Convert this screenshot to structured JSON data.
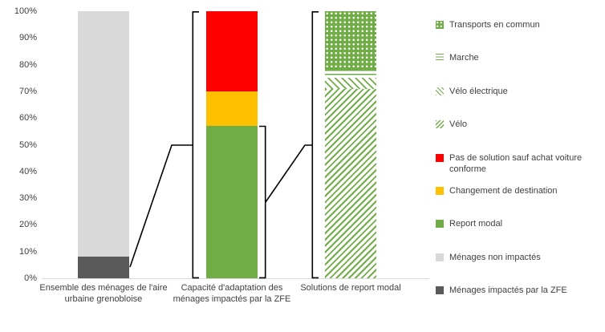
{
  "chart_data": {
    "type": "bar",
    "variant": "stacked-100-waterfall",
    "title": "",
    "xlabel": "",
    "ylabel": "",
    "ylim": [
      0,
      100
    ],
    "grid": false,
    "legend_position": "right",
    "ytick_labels": [
      "0%",
      "10%",
      "20%",
      "30%",
      "40%",
      "50%",
      "60%",
      "70%",
      "80%",
      "90%",
      "100%"
    ],
    "categories": [
      "Ensemble des ménages de l'aire urbaine grenobloise",
      "Capacité d'adaptation des ménages impactés par la ZFE",
      "Solutions de report modal"
    ],
    "bars": [
      {
        "category": "Ensemble des ménages de l'aire urbaine grenobloise",
        "segments": [
          {
            "label": "Ménages impactés  par la ZFE",
            "value": 8,
            "color": "#595959",
            "pattern": "solid"
          },
          {
            "label": "Ménages non impactés",
            "value": 92,
            "color": "#D9D9D9",
            "pattern": "solid"
          }
        ]
      },
      {
        "category": "Capacité d'adaptation des ménages impactés par la ZFE",
        "segments": [
          {
            "label": "Report modal",
            "value": 57,
            "color": "#70AD47",
            "pattern": "solid"
          },
          {
            "label": "Changement de destination",
            "value": 13,
            "color": "#FFC000",
            "pattern": "solid"
          },
          {
            "label": "Pas de solution sauf achat voiture conforme",
            "value": 30,
            "color": "#FF0000",
            "pattern": "solid"
          }
        ]
      },
      {
        "category": "Solutions de report modal",
        "segments": [
          {
            "label": "Vélo",
            "value": 71,
            "color": "#70AD47",
            "pattern": "diagonal-dense"
          },
          {
            "label": "Vélo électrique",
            "value": 4,
            "color": "#70AD47",
            "pattern": "diagonal"
          },
          {
            "label": "Marche",
            "value": 3,
            "color": "#70AD47",
            "pattern": "horizontal"
          },
          {
            "label": "Transports en commun",
            "value": 22,
            "color": "#70AD47",
            "pattern": "dots"
          }
        ]
      }
    ],
    "legend": [
      {
        "label": "Transports en commun",
        "color": "#70AD47",
        "pattern": "dots"
      },
      {
        "label": "Marche",
        "color": "#70AD47",
        "pattern": "horizontal"
      },
      {
        "label": "Vélo électrique",
        "color": "#70AD47",
        "pattern": "diagonal"
      },
      {
        "label": "Vélo",
        "color": "#70AD47",
        "pattern": "diagonal-dense"
      },
      {
        "label": "Pas de solution sauf achat voiture conforme",
        "color": "#FF0000",
        "pattern": "solid"
      },
      {
        "label": "Changement de destination",
        "color": "#FFC000",
        "pattern": "solid"
      },
      {
        "label": "Report modal",
        "color": "#70AD47",
        "pattern": "solid"
      },
      {
        "label": "Ménages non impactés",
        "color": "#D9D9D9",
        "pattern": "solid"
      },
      {
        "label": "Ménages impactés  par la ZFE",
        "color": "#595959",
        "pattern": "solid"
      }
    ]
  }
}
